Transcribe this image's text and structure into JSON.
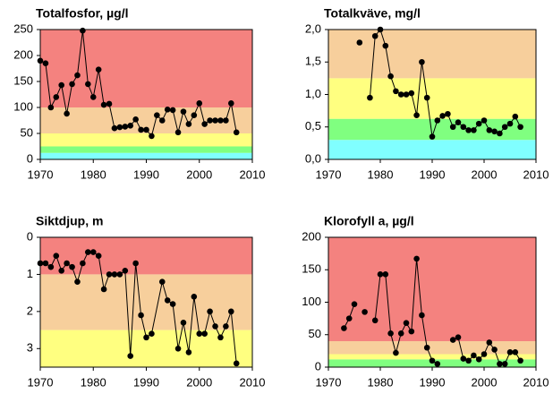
{
  "chart_data": [
    {
      "type": "line",
      "title": "Totalfosfor, µg/l",
      "xlim": [
        1970,
        2010
      ],
      "xticks": [
        1970,
        1980,
        1990,
        2000,
        2010
      ],
      "ylim": [
        0,
        250
      ],
      "yticks": [
        0,
        50,
        100,
        150,
        200,
        250
      ],
      "bands": [
        {
          "from": 0,
          "to": 12.5,
          "color": "#80ffff"
        },
        {
          "from": 12.5,
          "to": 25,
          "color": "#80ff80"
        },
        {
          "from": 25,
          "to": 50,
          "color": "#ffff80"
        },
        {
          "from": 50,
          "to": 100,
          "color": "#f7cf9c"
        },
        {
          "from": 100,
          "to": 250,
          "color": "#f4827f"
        }
      ],
      "series": [
        {
          "color": "#000000",
          "x": [
            1970,
            1971,
            1972,
            1973,
            1974,
            1975,
            1976,
            1977,
            1978,
            1979,
            1980,
            1981,
            1982,
            1983,
            1984,
            1985,
            1986,
            1987,
            1988,
            1989,
            1990,
            1991,
            1992,
            1993,
            1994,
            1995,
            1996,
            1997,
            1998,
            1999,
            2000,
            2001,
            2002,
            2003,
            2004,
            2005,
            2006,
            2007
          ],
          "values": [
            190,
            185,
            100,
            120,
            143,
            88,
            145,
            162,
            248,
            145,
            120,
            173,
            105,
            107,
            60,
            62,
            63,
            65,
            77,
            57,
            57,
            45,
            85,
            75,
            96,
            95,
            52,
            92,
            68,
            85,
            108,
            68,
            75,
            75,
            75,
            75,
            108,
            52
          ]
        }
      ]
    },
    {
      "type": "line",
      "title": "Totalkväve, mg/l",
      "xlim": [
        1970,
        2010
      ],
      "xticks": [
        1970,
        1980,
        1990,
        2000,
        2010
      ],
      "ylim": [
        0,
        2
      ],
      "yticks": [
        {
          "value": 0,
          "label": "0,0"
        },
        {
          "value": 0.5,
          "label": "0,5"
        },
        {
          "value": 1,
          "label": "1,0"
        },
        {
          "value": 1.5,
          "label": "1,5"
        },
        {
          "value": 2,
          "label": "2,0"
        }
      ],
      "bands": [
        {
          "from": 0,
          "to": 0.3,
          "color": "#80ffff"
        },
        {
          "from": 0.3,
          "to": 0.625,
          "color": "#80ff80"
        },
        {
          "from": 0.625,
          "to": 1.25,
          "color": "#ffff80"
        },
        {
          "from": 1.25,
          "to": 2,
          "color": "#f7cf9c"
        }
      ],
      "series": [
        {
          "color": "#000000",
          "x": [
            1976,
            1977,
            1978,
            1979,
            1980,
            1981,
            1982,
            1983,
            1984,
            1985,
            1986,
            1987,
            1988,
            1989,
            1990,
            1991,
            1992,
            1993,
            1994,
            1995,
            1996,
            1997,
            1998,
            1999,
            2000,
            2001,
            2002,
            2003,
            2004,
            2005,
            2006,
            2007
          ],
          "values": [
            1.8,
            null,
            0.95,
            1.9,
            2.0,
            1.75,
            1.28,
            1.05,
            1.0,
            1.0,
            1.02,
            0.68,
            1.5,
            0.95,
            0.35,
            0.6,
            0.67,
            0.7,
            0.5,
            0.57,
            0.5,
            0.45,
            0.45,
            0.55,
            0.6,
            0.45,
            0.43,
            0.4,
            0.5,
            0.55,
            0.66,
            0.5
          ]
        }
      ]
    },
    {
      "type": "line",
      "title": "Siktdjup, m",
      "y_inverted": true,
      "xlim": [
        1970,
        2010
      ],
      "xticks": [
        1970,
        1980,
        1990,
        2000,
        2010
      ],
      "ylim": [
        0,
        3.5
      ],
      "yticks": [
        0,
        1,
        2,
        3
      ],
      "bands": [
        {
          "from": 0,
          "to": 1,
          "color": "#f4827f"
        },
        {
          "from": 1,
          "to": 2.5,
          "color": "#f7cf9c"
        },
        {
          "from": 2.5,
          "to": 3.5,
          "color": "#ffff80"
        }
      ],
      "series": [
        {
          "color": "#000000",
          "x": [
            1970,
            1971,
            1972,
            1973,
            1974,
            1975,
            1976,
            1977,
            1978,
            1979,
            1980,
            1981,
            1982,
            1983,
            1984,
            1985,
            1986,
            1987,
            1988,
            1989,
            1990,
            1991,
            1993,
            1994,
            1995,
            1996,
            1997,
            1998,
            1999,
            2000,
            2001,
            2002,
            2003,
            2004,
            2005,
            2006,
            2007
          ],
          "values": [
            0.7,
            0.7,
            0.8,
            0.5,
            0.9,
            0.7,
            0.8,
            1.2,
            0.7,
            0.4,
            0.4,
            0.5,
            1.4,
            1.0,
            1.0,
            1.0,
            0.9,
            3.2,
            0.7,
            2.1,
            2.7,
            2.6,
            1.2,
            1.7,
            1.8,
            3.0,
            2.3,
            3.1,
            1.6,
            2.6,
            2.6,
            2.0,
            2.4,
            2.7,
            2.4,
            2.0,
            3.4
          ]
        }
      ]
    },
    {
      "type": "line",
      "title": "Klorofyll a, µg/l",
      "xlim": [
        1970,
        2010
      ],
      "xticks": [
        1970,
        1980,
        1990,
        2000,
        2010
      ],
      "ylim": [
        0,
        200
      ],
      "yticks": [
        0,
        50,
        100,
        150,
        200
      ],
      "bands": [
        {
          "from": 0,
          "to": 12,
          "color": "#80ff80"
        },
        {
          "from": 12,
          "to": 20,
          "color": "#ffff80"
        },
        {
          "from": 20,
          "to": 40,
          "color": "#f7cf9c"
        },
        {
          "from": 40,
          "to": 200,
          "color": "#f4827f"
        }
      ],
      "series": [
        {
          "color": "#000000",
          "x": [
            1973,
            1974,
            1975,
            1976,
            1977,
            1978,
            1979,
            1980,
            1981,
            1982,
            1983,
            1984,
            1985,
            1986,
            1987,
            1988,
            1989,
            1990,
            1991,
            1992,
            1994,
            1995,
            1996,
            1997,
            1998,
            1999,
            2000,
            2001,
            2002,
            2003,
            2004,
            2005,
            2006,
            2007
          ],
          "values": [
            60,
            75,
            97,
            null,
            85,
            null,
            72,
            143,
            143,
            52,
            22,
            52,
            68,
            55,
            167,
            80,
            30,
            10,
            5,
            null,
            42,
            46,
            13,
            10,
            18,
            12,
            20,
            38,
            27,
            5,
            5,
            23,
            23,
            10
          ]
        }
      ]
    }
  ]
}
